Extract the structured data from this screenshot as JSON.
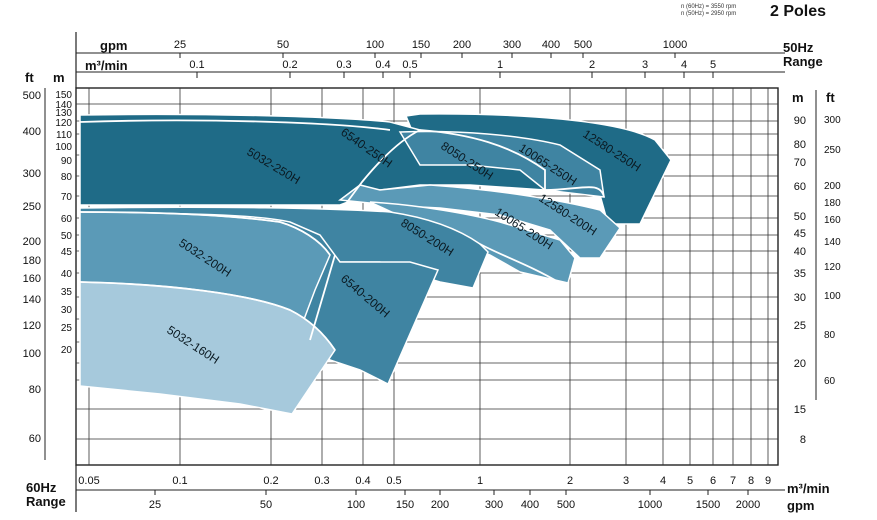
{
  "header": {
    "title": "",
    "speed_note_1": "n (60Hz) = 3550 rpm",
    "speed_note_2": "n (50Hz) = 2950 rpm",
    "poles": "2 Poles"
  },
  "labels": {
    "range_50_a": "50Hz",
    "range_50_b": "Range",
    "range_60_a": "60Hz",
    "range_60_b": "Range",
    "gpm_top": "gpm",
    "m3min_top": "m³/min",
    "gpm_bottom": "gpm",
    "m3min_bottom": "m³/min",
    "ft_left": "ft",
    "m_left": "m",
    "m_right": "m",
    "ft_right": "ft"
  },
  "chart_data": {
    "type": "area",
    "scale": "log-log",
    "grid": true,
    "axes": {
      "top_gpm_ticks": [
        "25",
        "50",
        "100",
        "150",
        "200",
        "300",
        "400",
        "500",
        "1000"
      ],
      "top_m3min_ticks": [
        "0.1",
        "0.2",
        "0.3",
        "0.4",
        "0.5",
        "1",
        "2",
        "3",
        "4",
        "5"
      ],
      "bottom_m3min_ticks": [
        "0.05",
        "0.1",
        "0.2",
        "0.3",
        "0.4",
        "0.5",
        "1",
        "2",
        "3",
        "4",
        "5",
        "6",
        "7",
        "8",
        "9"
      ],
      "bottom_gpm_ticks": [
        "25",
        "50",
        "100",
        "150",
        "200",
        "300",
        "400",
        "500",
        "1000",
        "1500",
        "2000"
      ],
      "left_ft_ticks": [
        "500",
        "400",
        "300",
        "250",
        "200",
        "180",
        "160",
        "140",
        "120",
        "100",
        "80",
        "60"
      ],
      "left_m_ticks": [
        "150",
        "140",
        "130",
        "120",
        "110",
        "100",
        "90",
        "80",
        "70",
        "60",
        "50",
        "45",
        "40",
        "35",
        "30",
        "25",
        "20"
      ],
      "right_m_ticks": [
        "90",
        "80",
        "70",
        "60",
        "50",
        "45",
        "40",
        "35",
        "30",
        "25",
        "20",
        "15",
        "8"
      ],
      "right_ft_ticks": [
        "300",
        "250",
        "200",
        "180",
        "160",
        "140",
        "120",
        "100",
        "80",
        "60"
      ]
    },
    "series": [
      {
        "name": "5032-160H",
        "flow_m3min": [
          0.045,
          0.22
        ],
        "head_m": [
          25,
          47
        ]
      },
      {
        "name": "5032-200H",
        "flow_m3min": [
          0.045,
          0.33
        ],
        "head_m": [
          45,
          72
        ]
      },
      {
        "name": "6540-200H",
        "flow_m3min": [
          0.2,
          0.48
        ],
        "head_m": [
          23,
          70
        ]
      },
      {
        "name": "8050-200H",
        "flow_m3min": [
          0.4,
          1.0
        ],
        "head_m": [
          44,
          74
        ]
      },
      {
        "name": "10065-200H",
        "flow_m3min": [
          0.7,
          1.8
        ],
        "head_m": [
          38,
          78
        ]
      },
      {
        "name": "12580-200H",
        "flow_m3min": [
          1.5,
          2.7
        ],
        "head_m": [
          40,
          68
        ]
      },
      {
        "name": "5032-250H",
        "flow_m3min": [
          0.045,
          0.34
        ],
        "head_m": [
          74,
          130
        ]
      },
      {
        "name": "6540-250H",
        "flow_m3min": [
          0.3,
          0.52
        ],
        "head_m": [
          74,
          125
        ]
      },
      {
        "name": "8050-250H",
        "flow_m3min": [
          0.5,
          1.2
        ],
        "head_m": [
          68,
          112
        ]
      },
      {
        "name": "10065-250H",
        "flow_m3min": [
          1.0,
          2.2
        ],
        "head_m": [
          64,
          110
        ]
      },
      {
        "name": "12580-250H",
        "flow_m3min": [
          1.3,
          4.0
        ],
        "head_m": [
          54,
          130
        ]
      }
    ],
    "colors": {
      "light": "#a6c9dc",
      "mid": "#5b9ab7",
      "deep": "#3f84a2",
      "deepest": "#1f6b87"
    }
  }
}
